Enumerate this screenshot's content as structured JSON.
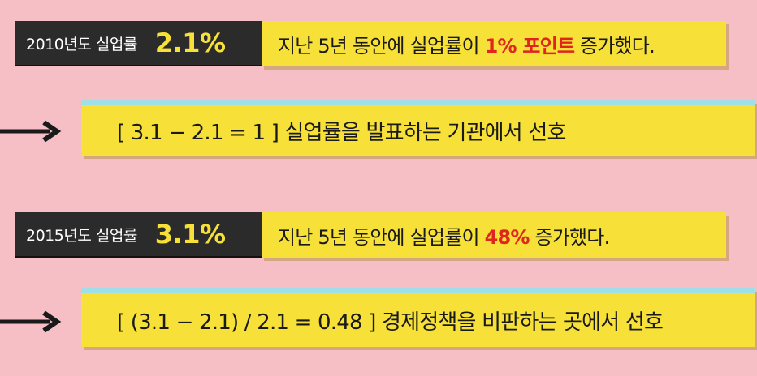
{
  "colors": {
    "background": "#f6bfc6",
    "yellow": "#f7e138",
    "dark": "#2b2b2b",
    "red": "#e0241f",
    "cyan": "#9fe0e8"
  },
  "row1": {
    "year_label": "2010년도 실업률",
    "rate": "2.1%",
    "statement_pre": "지난 5년 동안에 실업률이 ",
    "statement_highlight": "1% 포인트",
    "statement_post": " 증가했다.",
    "calc": "[ 3.1 − 2.1 = 1 ]  실업률을 발표하는 기관에서 선호"
  },
  "row2": {
    "year_label": "2015년도 실업률",
    "rate": "3.1%",
    "statement_pre": "지난 5년 동안에 실업률이 ",
    "statement_highlight": "48%",
    "statement_post": " 증가했다.",
    "calc": "[ (3.1 − 2.1) / 2.1 = 0.48 ]  경제정책을 비판하는 곳에서 선호"
  },
  "icons": [
    "arrow-right-icon",
    "arrow-right-icon"
  ]
}
